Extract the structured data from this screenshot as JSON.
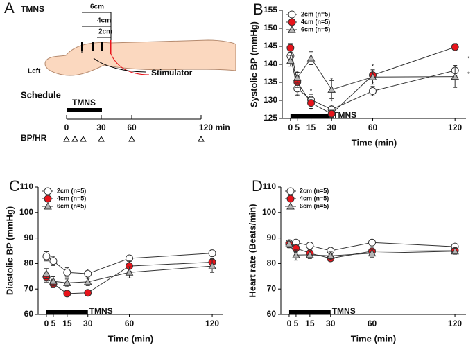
{
  "diagram": {
    "panel": "A",
    "title": "TMNS",
    "distances": [
      "6cm",
      "4cm",
      "2cm"
    ],
    "side": "Left",
    "device": "Stimulator",
    "schedule": {
      "title": "Schedule",
      "bar_label": "TMNS",
      "times": [
        "0",
        "30",
        "60",
        "120 min"
      ],
      "row_label": "BP/HR"
    }
  },
  "chart_data": [
    {
      "type": "line",
      "panel": "B",
      "ylabel": "Systolic  BP  (mmHg)",
      "xlabel": "Time (min)",
      "x": [
        0,
        5,
        15,
        30,
        60,
        120
      ],
      "xlim": [
        -6,
        128
      ],
      "xticks": [
        0,
        5,
        15,
        30,
        60,
        120
      ],
      "ylim": [
        125,
        155
      ],
      "yticks": [
        125,
        130,
        135,
        140,
        145,
        150,
        155
      ],
      "series": [
        {
          "name": "2cm (n=5)",
          "color": "#ffffff",
          "marker": "circle",
          "values": [
            142.3,
            133.3,
            130.2,
            127.5,
            132.6,
            138.3
          ],
          "errors": [
            1.5,
            1.8,
            1.5,
            1.2,
            1.3,
            1.4
          ]
        },
        {
          "name": "4cm (n=5)",
          "color": "#e8141b",
          "marker": "circle",
          "values": [
            144.6,
            135.1,
            129.3,
            126.3,
            137.0,
            144.8
          ],
          "errors": [
            1.2,
            1.5,
            1.5,
            1.0,
            1.2,
            1.0
          ]
        },
        {
          "name": "6cm (n=5)",
          "color": "#b5b5b5",
          "marker": "triangle",
          "values": [
            141.0,
            136.3,
            141.7,
            133.0,
            136.5,
            136.6
          ],
          "errors": [
            1.5,
            1.5,
            1.8,
            2.5,
            2.0,
            3.0
          ]
        }
      ],
      "stimulation": {
        "label": "TMNS",
        "start": 0,
        "end": 30
      },
      "annotations": [
        {
          "x": 5,
          "y": 137.5,
          "text": "*"
        },
        {
          "x": 5,
          "y": 131,
          "text": "*"
        },
        {
          "x": 15,
          "y": 132.5,
          "text": "*"
        },
        {
          "x": 15,
          "y": 127.3,
          "text": "*"
        },
        {
          "x": 30,
          "y": 135.5,
          "text": "*"
        },
        {
          "x": 30,
          "y": 129.6,
          "text": "*"
        },
        {
          "x": 60,
          "y": 139.3,
          "text": "*"
        },
        {
          "x": 60,
          "y": 134.6,
          "text": "*"
        },
        {
          "x": 130,
          "y": 141.5,
          "text": "*"
        },
        {
          "x": 130,
          "y": 137.2,
          "text": "*"
        }
      ]
    },
    {
      "type": "line",
      "panel": "C",
      "ylabel": "Diastolic BP (mmHg)",
      "xlabel": "Time (min)",
      "x": [
        0,
        5,
        15,
        30,
        60,
        120
      ],
      "xlim": [
        -6,
        128
      ],
      "xticks": [
        0,
        5,
        15,
        30,
        60,
        120
      ],
      "ylim": [
        60,
        110
      ],
      "yticks": [
        60,
        70,
        80,
        90,
        100,
        110
      ],
      "series": [
        {
          "name": "2cm (n=5)",
          "color": "#ffffff",
          "marker": "circle",
          "values": [
            82.8,
            81.0,
            76.5,
            76.0,
            82.0,
            84.0
          ],
          "errors": [
            1.8,
            1.8,
            1.8,
            1.8,
            1.2,
            1.2
          ]
        },
        {
          "name": "4cm (n=5)",
          "color": "#e8141b",
          "marker": "circle",
          "values": [
            74.7,
            72.0,
            68.2,
            68.5,
            79.0,
            80.5
          ],
          "errors": [
            2.0,
            1.5,
            1.0,
            1.0,
            2.0,
            1.5
          ]
        },
        {
          "name": "6cm (n=5)",
          "color": "#b5b5b5",
          "marker": "triangle",
          "values": [
            76.0,
            73.0,
            72.4,
            72.8,
            76.5,
            79.0
          ],
          "errors": [
            2.0,
            1.8,
            1.5,
            1.5,
            2.2,
            2.5
          ]
        }
      ],
      "stimulation": {
        "label": "TMNS",
        "start": 0,
        "end": 30
      }
    },
    {
      "type": "line",
      "panel": "D",
      "ylabel": "Heart rate (Beats/min)",
      "xlabel": "Time (min)",
      "x": [
        0,
        5,
        15,
        30,
        60,
        120
      ],
      "xlim": [
        -6,
        128
      ],
      "xticks": [
        0,
        5,
        15,
        30,
        60,
        120
      ],
      "ylim": [
        60,
        110
      ],
      "yticks": [
        60,
        70,
        80,
        90,
        100,
        110
      ],
      "series": [
        {
          "name": "2cm (n=5)",
          "color": "#ffffff",
          "marker": "circle",
          "values": [
            88.0,
            88.2,
            87.0,
            85.0,
            88.2,
            86.6
          ],
          "errors": [
            1.2,
            1.2,
            1.0,
            1.5,
            1.0,
            1.0
          ]
        },
        {
          "name": "4cm (n=5)",
          "color": "#e8141b",
          "marker": "circle",
          "values": [
            87.5,
            86.0,
            84.0,
            82.0,
            84.8,
            85.0
          ],
          "errors": [
            1.2,
            1.5,
            1.5,
            1.0,
            1.2,
            1.0
          ]
        },
        {
          "name": "6cm (n=5)",
          "color": "#b5b5b5",
          "marker": "triangle",
          "values": [
            87.7,
            83.3,
            83.4,
            83.0,
            84.0,
            84.8
          ],
          "errors": [
            1.5,
            2.0,
            1.5,
            1.5,
            1.5,
            1.2
          ]
        }
      ],
      "stimulation": {
        "label": "TMNS",
        "start": 0,
        "end": 30
      }
    }
  ]
}
